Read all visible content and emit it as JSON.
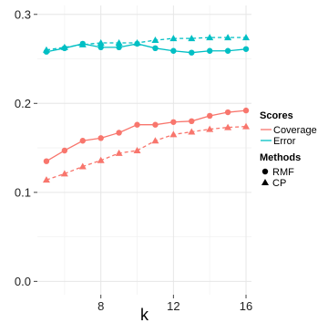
{
  "chart_data": {
    "type": "line",
    "xlabel": "k",
    "ylabel": "",
    "xlim": [
      4.5,
      16.3
    ],
    "ylim": [
      -0.015,
      0.31
    ],
    "x_ticks": [
      8,
      12,
      16
    ],
    "x_tick_labels": [
      "8",
      "12",
      "16"
    ],
    "y_ticks": [
      0.0,
      0.1,
      0.2,
      0.3
    ],
    "y_tick_labels": [
      "0.0",
      "0.1",
      "0.2",
      "0.3"
    ],
    "grid": true,
    "legend_position": "right",
    "legend": {
      "scores_title": "Scores",
      "scores_items": [
        {
          "label": "Coverage",
          "color": "#F8766D"
        },
        {
          "label": "Error",
          "color": "#00BFC4"
        }
      ],
      "methods_title": "Methods",
      "methods_items": [
        {
          "label": "RMF",
          "shape": "circle",
          "linestyle": "solid"
        },
        {
          "label": "CP",
          "shape": "triangle",
          "linestyle": "dashed"
        }
      ]
    },
    "x": [
      5,
      6,
      7,
      8,
      9,
      10,
      11,
      12,
      13,
      14,
      15,
      16
    ],
    "series": [
      {
        "name": "Coverage",
        "method": "RMF",
        "color": "#F8766D",
        "shape": "circle",
        "linestyle": "solid",
        "values": [
          0.135,
          0.147,
          0.158,
          0.161,
          0.167,
          0.176,
          0.176,
          0.179,
          0.18,
          0.186,
          0.19,
          0.192
        ]
      },
      {
        "name": "Coverage",
        "method": "CP",
        "color": "#F8766D",
        "shape": "triangle",
        "linestyle": "dashed",
        "values": [
          0.114,
          0.121,
          0.129,
          0.136,
          0.144,
          0.147,
          0.158,
          0.165,
          0.168,
          0.171,
          0.173,
          0.174
        ]
      },
      {
        "name": "Error",
        "method": "RMF",
        "color": "#00BFC4",
        "shape": "circle",
        "linestyle": "solid",
        "values": [
          0.258,
          0.262,
          0.267,
          0.263,
          0.263,
          0.267,
          0.262,
          0.259,
          0.257,
          0.259,
          0.259,
          0.261
        ]
      },
      {
        "name": "Error",
        "method": "CP",
        "color": "#00BFC4",
        "shape": "triangle",
        "linestyle": "dashed",
        "values": [
          0.26,
          0.263,
          0.266,
          0.268,
          0.268,
          0.268,
          0.271,
          0.273,
          0.273,
          0.274,
          0.274,
          0.274
        ]
      }
    ]
  }
}
